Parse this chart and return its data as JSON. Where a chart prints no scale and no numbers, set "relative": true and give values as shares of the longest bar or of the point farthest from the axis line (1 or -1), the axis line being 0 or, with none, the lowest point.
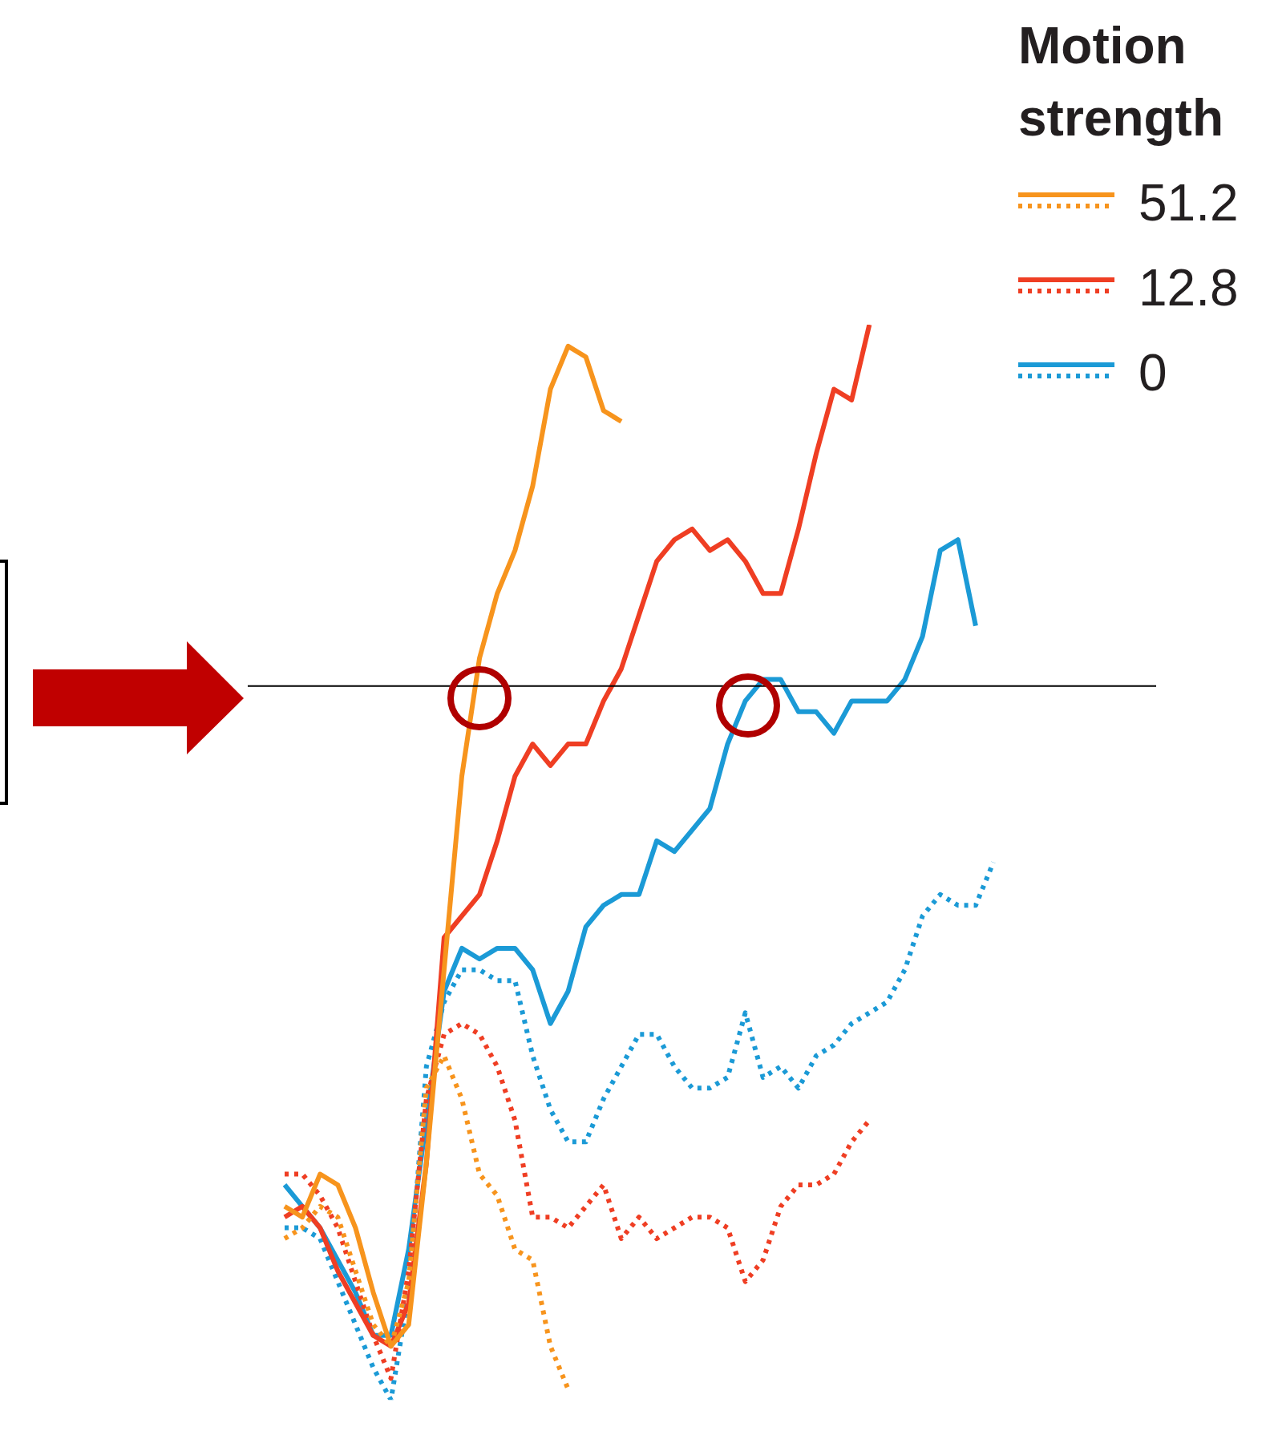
{
  "chart_data": {
    "type": "line",
    "relative": true,
    "legend_title": "Motion strength",
    "legend": "top right",
    "grid": false,
    "marker": "none",
    "categories": [
      null,
      null,
      null,
      null,
      null,
      null,
      null,
      null,
      null,
      null,
      null,
      null,
      null,
      null,
      null,
      null,
      null,
      null,
      null,
      null,
      null,
      null,
      null,
      null,
      null,
      null,
      null,
      null,
      null,
      null,
      null,
      null,
      null,
      null,
      null,
      null,
      null,
      null,
      null,
      null,
      null
    ],
    "series": [
      {
        "name": "51.2",
        "color": "#f7941d",
        "line_style": "solid",
        "values": [
          0.18,
          0.17,
          0.21,
          0.2,
          0.16,
          0.1,
          0.05,
          0.07,
          0.22,
          0.4,
          0.58,
          0.69,
          0.75,
          0.79,
          0.85,
          0.94,
          0.98,
          0.97,
          0.92,
          0.91,
          null,
          null,
          null,
          null,
          null,
          null,
          null,
          null,
          null,
          null,
          null,
          null,
          null,
          null,
          null,
          null,
          null,
          null,
          null,
          null,
          null
        ]
      },
      {
        "color": "#f7941d",
        "line_style": "dotted",
        "values": [
          0.15,
          0.16,
          0.18,
          0.17,
          0.12,
          0.07,
          0.05,
          0.11,
          0.29,
          0.32,
          0.28,
          0.21,
          0.19,
          0.14,
          0.13,
          0.05,
          0.01,
          null,
          null,
          null,
          null,
          null,
          null,
          null,
          null,
          null,
          null,
          null,
          null,
          null,
          null,
          null,
          null,
          null,
          null,
          null,
          null,
          null,
          null,
          null,
          null
        ]
      },
      {
        "name": "12.8",
        "color": "#ef3e23",
        "line_style": "solid",
        "values": [
          0.17,
          0.18,
          0.16,
          0.12,
          0.09,
          0.06,
          0.05,
          0.09,
          0.22,
          0.43,
          0.45,
          0.47,
          0.52,
          0.58,
          0.61,
          0.59,
          0.61,
          0.61,
          0.65,
          0.68,
          0.73,
          0.78,
          0.8,
          0.81,
          0.79,
          0.8,
          0.78,
          0.75,
          0.75,
          0.81,
          0.88,
          0.94,
          0.93,
          1.0,
          null,
          null,
          null,
          null,
          null,
          null,
          null
        ]
      },
      {
        "color": "#ef3e23",
        "line_style": "dotted",
        "values": [
          0.21,
          0.21,
          0.19,
          0.16,
          0.11,
          0.06,
          0.02,
          0.12,
          0.28,
          0.34,
          0.35,
          0.34,
          0.31,
          0.26,
          0.17,
          0.17,
          0.16,
          0.18,
          0.2,
          0.15,
          0.17,
          0.15,
          0.16,
          0.17,
          0.17,
          0.16,
          0.11,
          0.13,
          0.18,
          0.2,
          0.2,
          0.21,
          0.24,
          0.26,
          null,
          null,
          null,
          null,
          null,
          null,
          null
        ]
      },
      {
        "name": "0",
        "color": "#1b9ad6",
        "line_style": "solid",
        "values": [
          0.2,
          0.18,
          0.16,
          0.13,
          0.1,
          0.06,
          0.06,
          0.14,
          0.26,
          0.38,
          0.42,
          0.41,
          0.42,
          0.42,
          0.4,
          0.35,
          0.38,
          0.44,
          0.46,
          0.47,
          0.47,
          0.52,
          0.51,
          0.53,
          0.55,
          0.61,
          0.65,
          0.67,
          0.67,
          0.64,
          0.64,
          0.62,
          0.65,
          0.65,
          0.65,
          0.67,
          0.71,
          0.79,
          0.8,
          0.72,
          null
        ]
      },
      {
        "color": "#1b9ad6",
        "line_style": "dotted",
        "values": [
          0.16,
          0.16,
          0.15,
          0.11,
          0.07,
          0.03,
          0.0,
          0.1,
          0.31,
          0.37,
          0.4,
          0.4,
          0.39,
          0.39,
          0.32,
          0.27,
          0.24,
          0.24,
          0.28,
          0.31,
          0.34,
          0.34,
          0.31,
          0.29,
          0.29,
          0.3,
          0.36,
          0.3,
          0.31,
          0.29,
          0.32,
          0.33,
          0.35,
          0.36,
          0.37,
          0.4,
          0.45,
          0.47,
          0.46,
          0.46,
          0.5
        ]
      }
    ],
    "ref_lines": [
      {
        "axis": "y",
        "value": 0.664,
        "color": "#000000"
      }
    ]
  }
}
